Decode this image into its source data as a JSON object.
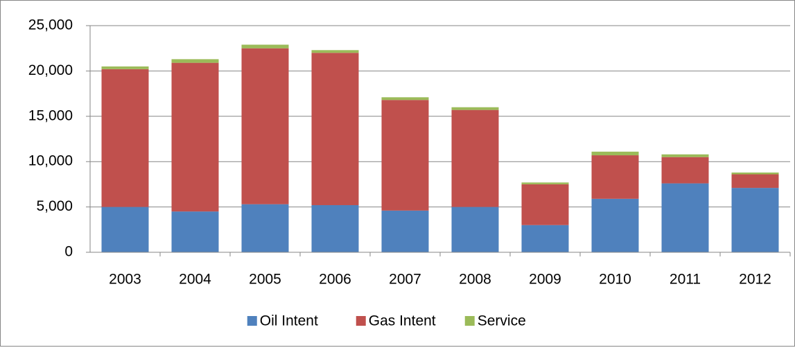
{
  "chart_data": {
    "type": "stacked_bar",
    "categories": [
      "2003",
      "2004",
      "2005",
      "2006",
      "2007",
      "2008",
      "2009",
      "2010",
      "2011",
      "2012"
    ],
    "series": [
      {
        "name": "Oil Intent",
        "color": "#4f81bd",
        "values": [
          5000,
          4500,
          5300,
          5200,
          4600,
          5000,
          3000,
          5900,
          7600,
          7100
        ]
      },
      {
        "name": "Gas Intent",
        "color": "#c0504d",
        "values": [
          15200,
          16400,
          17200,
          16800,
          12200,
          10700,
          4500,
          4800,
          2900,
          1500
        ]
      },
      {
        "name": "Service",
        "color": "#9bbb59",
        "values": [
          300,
          400,
          400,
          300,
          300,
          300,
          200,
          400,
          300,
          200
        ]
      }
    ],
    "ylim": [
      0,
      25000
    ],
    "yticks": [
      0,
      {
        "value": 5000,
        "label": "5,000"
      },
      {
        "value": 10000,
        "label": "10,000"
      },
      {
        "value": 15000,
        "label": "15,000"
      },
      {
        "value": 20000,
        "label": "20,000"
      },
      {
        "value": 25000,
        "label": "25,000"
      }
    ],
    "grid": true,
    "legend": "bottom"
  }
}
